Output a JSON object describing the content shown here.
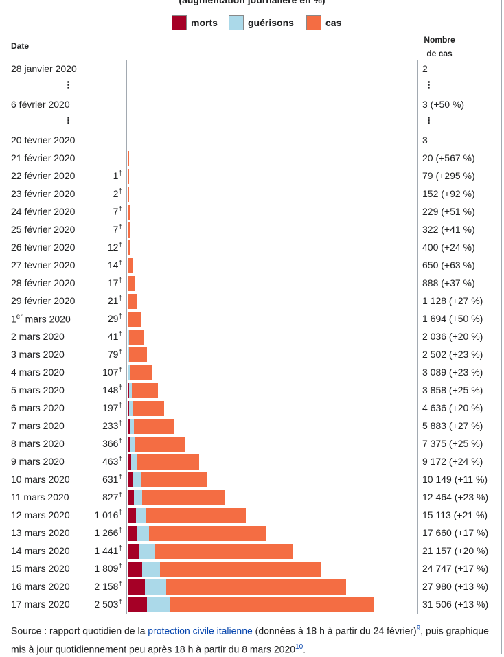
{
  "chart_data": {
    "type": "bar",
    "title": "(augmentation journalière en %)",
    "legend": [
      {
        "label": "morts",
        "color": "#a50026"
      },
      {
        "label": "guérisons",
        "color": "#abd9e9"
      },
      {
        "label": "cas",
        "color": "#f46d43"
      }
    ],
    "header_date": "Date",
    "header_cases_line1": "Nombre",
    "header_cases_line2": "de cas",
    "death_mark": "†",
    "rows": [
      {
        "kind": "data",
        "date": "28 janvier 2020",
        "deaths_label": "",
        "cases_label": "2",
        "deaths": 0,
        "recovered": 0,
        "cases": 2
      },
      {
        "kind": "gap"
      },
      {
        "kind": "data",
        "date": "6 février 2020",
        "deaths_label": "",
        "cases_label": "3 (+50 %)",
        "deaths": 0,
        "recovered": 0,
        "cases": 3
      },
      {
        "kind": "gap"
      },
      {
        "kind": "data",
        "date": "20 février 2020",
        "deaths_label": "",
        "cases_label": "3",
        "deaths": 0,
        "recovered": 0,
        "cases": 3
      },
      {
        "kind": "data",
        "date": "21 février 2020",
        "deaths_label": "",
        "cases_label": "20 (+567 %)",
        "deaths": 0,
        "recovered": 0,
        "cases": 20
      },
      {
        "kind": "data",
        "date": "22 février 2020",
        "deaths_label": "1",
        "cases_label": "79 (+295 %)",
        "deaths": 1,
        "recovered": 0,
        "cases": 79
      },
      {
        "kind": "data",
        "date": "23 février 2020",
        "deaths_label": "2",
        "cases_label": "152 (+92 %)",
        "deaths": 2,
        "recovered": 0,
        "cases": 152
      },
      {
        "kind": "data",
        "date": "24 février 2020",
        "deaths_label": "7",
        "cases_label": "229 (+51 %)",
        "deaths": 7,
        "recovered": 0,
        "cases": 229
      },
      {
        "kind": "data",
        "date": "25 février 2020",
        "deaths_label": "7",
        "cases_label": "322 (+41 %)",
        "deaths": 7,
        "recovered": 0,
        "cases": 322
      },
      {
        "kind": "data",
        "date": "26 février 2020",
        "deaths_label": "12",
        "cases_label": "400 (+24 %)",
        "deaths": 12,
        "recovered": 0,
        "cases": 400
      },
      {
        "kind": "data",
        "date": "27 février 2020",
        "deaths_label": "14",
        "cases_label": "650 (+63 %)",
        "deaths": 14,
        "recovered": 0,
        "cases": 650
      },
      {
        "kind": "data",
        "date": "28 février 2020",
        "deaths_label": "17",
        "cases_label": "888 (+37 %)",
        "deaths": 17,
        "recovered": 0,
        "cases": 888
      },
      {
        "kind": "data",
        "date": "29 février 2020",
        "deaths_label": "21",
        "cases_label": "1 128 (+27 %)",
        "deaths": 21,
        "recovered": 0,
        "cases": 1128
      },
      {
        "kind": "data",
        "date": "1",
        "date_sup": "er",
        "date_rest": " mars 2020",
        "deaths_label": "29",
        "cases_label": "1 694 (+50 %)",
        "deaths": 29,
        "recovered": 0,
        "cases": 1694
      },
      {
        "kind": "data",
        "date": "2 mars 2020",
        "deaths_label": "41",
        "cases_label": "2 036 (+20 %)",
        "deaths": 41,
        "recovered": 100,
        "cases": 2036
      },
      {
        "kind": "data",
        "date": "3 mars 2020",
        "deaths_label": "79",
        "cases_label": "2 502 (+23 %)",
        "deaths": 79,
        "recovered": 140,
        "cases": 2502
      },
      {
        "kind": "data",
        "date": "4 mars 2020",
        "deaths_label": "107",
        "cases_label": "3 089 (+23 %)",
        "deaths": 107,
        "recovered": 250,
        "cases": 3089
      },
      {
        "kind": "data",
        "date": "5 mars 2020",
        "deaths_label": "148",
        "cases_label": "3 858 (+25 %)",
        "deaths": 148,
        "recovered": 350,
        "cases": 3858
      },
      {
        "kind": "data",
        "date": "6 mars 2020",
        "deaths_label": "197",
        "cases_label": "4 636 (+20 %)",
        "deaths": 197,
        "recovered": 550,
        "cases": 4636
      },
      {
        "kind": "data",
        "date": "7 mars 2020",
        "deaths_label": "233",
        "cases_label": "5 883 (+27 %)",
        "deaths": 233,
        "recovered": 600,
        "cases": 5883
      },
      {
        "kind": "data",
        "date": "8 mars 2020",
        "deaths_label": "366",
        "cases_label": "7 375 (+25 %)",
        "deaths": 366,
        "recovered": 600,
        "cases": 7375
      },
      {
        "kind": "data",
        "date": "9 mars 2020",
        "deaths_label": "463",
        "cases_label": "9 172 (+24 %)",
        "deaths": 463,
        "recovered": 700,
        "cases": 9172
      },
      {
        "kind": "data",
        "date": "10 mars 2020",
        "deaths_label": "631",
        "cases_label": "10 149 (+11 %)",
        "deaths": 631,
        "recovered": 1000,
        "cases": 10149
      },
      {
        "kind": "data",
        "date": "11 mars 2020",
        "deaths_label": "827",
        "cases_label": "12 464 (+23 %)",
        "deaths": 827,
        "recovered": 1050,
        "cases": 12464
      },
      {
        "kind": "data",
        "date": "12 mars 2020",
        "deaths_label": "1 016",
        "cases_label": "15 113 (+21 %)",
        "deaths": 1016,
        "recovered": 1250,
        "cases": 15113
      },
      {
        "kind": "data",
        "date": "13 mars 2020",
        "deaths_label": "1 266",
        "cases_label": "17 660 (+17 %)",
        "deaths": 1266,
        "recovered": 1450,
        "cases": 17660
      },
      {
        "kind": "data",
        "date": "14 mars 2020",
        "deaths_label": "1 441",
        "cases_label": "21 157 (+20 %)",
        "deaths": 1441,
        "recovered": 2050,
        "cases": 21157
      },
      {
        "kind": "data",
        "date": "15 mars 2020",
        "deaths_label": "1 809",
        "cases_label": "24 747 (+17 %)",
        "deaths": 1809,
        "recovered": 2350,
        "cases": 24747
      },
      {
        "kind": "data",
        "date": "16 mars 2020",
        "deaths_label": "2 158",
        "cases_label": "27 980 (+13 %)",
        "deaths": 2158,
        "recovered": 2750,
        "cases": 27980
      },
      {
        "kind": "data",
        "date": "17 mars 2020",
        "deaths_label": "2 503",
        "cases_label": "31 506 (+13 %)",
        "deaths": 2503,
        "recovered": 2950,
        "cases": 31506
      }
    ]
  },
  "source": {
    "prefix": "Source : rapport quotidien de la ",
    "link": "protection civile italienne",
    "middle": " (données à 18 h à partir du 24 février)",
    "ref1": "9",
    "middle2": ", puis graphique mis à jour quotidiennement peu après 18 h à partir du 8 mars 2020",
    "ref2": "10",
    "suffix": "."
  }
}
